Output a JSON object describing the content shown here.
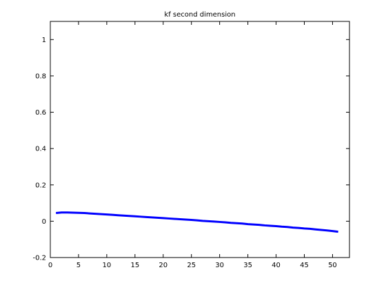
{
  "chart_data": {
    "type": "line",
    "title": "kf second dimension",
    "xlabel": "",
    "ylabel": "",
    "xlim": [
      0,
      53
    ],
    "ylim": [
      -0.2,
      1.1
    ],
    "grid": false,
    "x_ticks": [
      0,
      5,
      10,
      15,
      20,
      25,
      30,
      35,
      40,
      45,
      50
    ],
    "y_ticks": [
      -0.2,
      0,
      0.2,
      0.4,
      0.6,
      0.8,
      1
    ],
    "x_tick_labels": [
      "0",
      "5",
      "10",
      "15",
      "20",
      "25",
      "30",
      "35",
      "40",
      "45",
      "50"
    ],
    "y_tick_labels": [
      "-0.2",
      "0",
      "0.2",
      "0.4",
      "0.6",
      "0.8",
      "1"
    ],
    "series": [
      {
        "color": "#0000ff",
        "x": [
          1,
          2,
          3,
          4,
          5,
          6,
          7,
          8,
          9,
          10,
          11,
          12,
          13,
          14,
          15,
          16,
          17,
          18,
          19,
          20,
          21,
          22,
          23,
          24,
          25,
          26,
          27,
          28,
          29,
          30,
          31,
          32,
          33,
          34,
          35,
          36,
          37,
          38,
          39,
          40,
          41,
          42,
          43,
          44,
          45,
          46,
          47,
          48,
          49,
          50,
          51
        ],
        "y": [
          0.045,
          0.048,
          0.048,
          0.047,
          0.046,
          0.045,
          0.043,
          0.041,
          0.039,
          0.037,
          0.035,
          0.033,
          0.031,
          0.029,
          0.027,
          0.025,
          0.023,
          0.021,
          0.019,
          0.017,
          0.015,
          0.013,
          0.011,
          0.009,
          0.007,
          0.005,
          0.002,
          0.0,
          -0.002,
          -0.004,
          -0.006,
          -0.009,
          -0.011,
          -0.013,
          -0.016,
          -0.018,
          -0.02,
          -0.023,
          -0.025,
          -0.027,
          -0.03,
          -0.032,
          -0.035,
          -0.037,
          -0.04,
          -0.042,
          -0.045,
          -0.048,
          -0.051,
          -0.054,
          -0.058
        ]
      }
    ]
  }
}
